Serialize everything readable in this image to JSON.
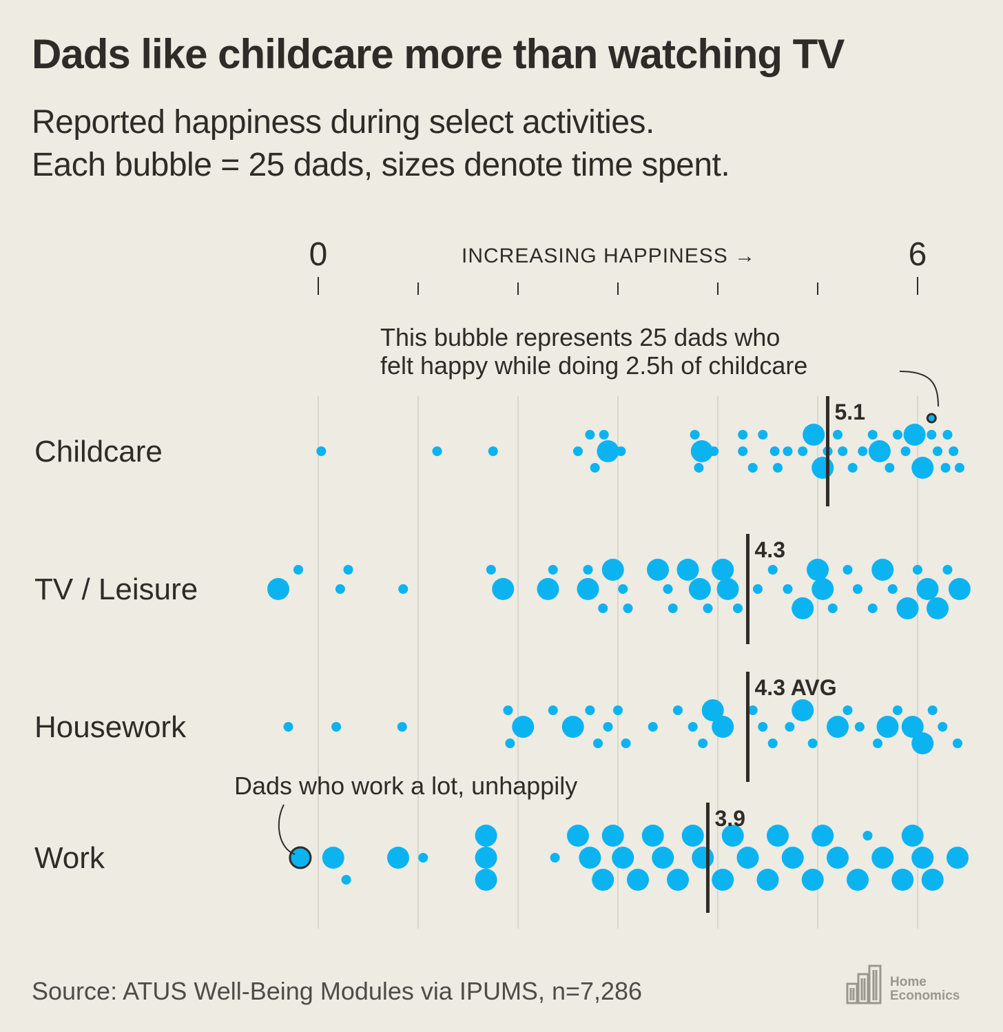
{
  "header": {
    "title": "Dads like childcare more than watching TV",
    "subtitle_line1": "Reported happiness during select activities.",
    "subtitle_line2": "Each bubble = 25 dads, sizes denote time spent."
  },
  "footer": {
    "source": "Source: ATUS Well-Being Modules via IPUMS, n=7,286",
    "logo_line1": "Home",
    "logo_line2": "Economics"
  },
  "colors": {
    "bubble": "#0cb3f1",
    "text": "#2f2b28",
    "grid": "#dad7cd",
    "background": "#edebe2"
  },
  "chart_data": {
    "type": "scatter",
    "subtype": "beeswarm",
    "x_axis_title": "INCREASING HAPPINESS →",
    "xlim": [
      0,
      6
    ],
    "x_ticks": [
      0,
      1,
      2,
      3,
      4,
      5,
      6
    ],
    "x_tick_labels": [
      "0",
      "",
      "",
      "",
      "",
      "",
      "6"
    ],
    "bubble_unit": "25 dads",
    "size_meaning": "time spent",
    "categories": [
      "Childcare",
      "TV / Leisure",
      "Housework",
      "Work"
    ],
    "series": [
      {
        "name": "Childcare",
        "avg": 5.1,
        "avg_label": "5.1",
        "bubbles": [
          {
            "x": 0.03,
            "yo": 0,
            "s": 1
          },
          {
            "x": 1.19,
            "yo": 0,
            "s": 1
          },
          {
            "x": 1.75,
            "yo": 0,
            "s": 1
          },
          {
            "x": 2.6,
            "yo": 0,
            "s": 1
          },
          {
            "x": 2.72,
            "yo": -1,
            "s": 1
          },
          {
            "x": 2.77,
            "yo": 1,
            "s": 1
          },
          {
            "x": 2.9,
            "yo": 0,
            "s": 2
          },
          {
            "x": 3.03,
            "yo": 0,
            "s": 1
          },
          {
            "x": 2.86,
            "yo": -1,
            "s": 1
          },
          {
            "x": 3.77,
            "yo": -1,
            "s": 1
          },
          {
            "x": 3.84,
            "yo": 0,
            "s": 2
          },
          {
            "x": 3.96,
            "yo": 0,
            "s": 1
          },
          {
            "x": 3.81,
            "yo": 1,
            "s": 1
          },
          {
            "x": 4.25,
            "yo": -1,
            "s": 1
          },
          {
            "x": 4.25,
            "yo": 0,
            "s": 1
          },
          {
            "x": 4.35,
            "yo": 1,
            "s": 1
          },
          {
            "x": 4.45,
            "yo": -1,
            "s": 1
          },
          {
            "x": 4.57,
            "yo": 0,
            "s": 1
          },
          {
            "x": 4.6,
            "yo": 1,
            "s": 1
          },
          {
            "x": 4.7,
            "yo": 0,
            "s": 1
          },
          {
            "x": 4.96,
            "yo": -1,
            "s": 2
          },
          {
            "x": 4.85,
            "yo": 0,
            "s": 1
          },
          {
            "x": 5.05,
            "yo": 1,
            "s": 2
          },
          {
            "x": 5.1,
            "yo": 0,
            "s": 1
          },
          {
            "x": 5.2,
            "yo": -1,
            "s": 1
          },
          {
            "x": 5.25,
            "yo": 0,
            "s": 1
          },
          {
            "x": 5.35,
            "yo": 1,
            "s": 1
          },
          {
            "x": 5.45,
            "yo": 0,
            "s": 1
          },
          {
            "x": 5.55,
            "yo": -1,
            "s": 1
          },
          {
            "x": 5.62,
            "yo": 0,
            "s": 2
          },
          {
            "x": 5.72,
            "yo": 1,
            "s": 1
          },
          {
            "x": 5.8,
            "yo": -1,
            "s": 1
          },
          {
            "x": 5.88,
            "yo": 0,
            "s": 1
          },
          {
            "x": 5.97,
            "yo": -1,
            "s": 2
          },
          {
            "x": 6.05,
            "yo": 1,
            "s": 2
          },
          {
            "x": 6.14,
            "yo": -1,
            "s": 1
          },
          {
            "x": 6.2,
            "yo": 0,
            "s": 1
          },
          {
            "x": 6.28,
            "yo": 1,
            "s": 1
          },
          {
            "x": 6.3,
            "yo": -1,
            "s": 1
          },
          {
            "x": 6.36,
            "yo": 0,
            "s": 1
          },
          {
            "x": 6.42,
            "yo": 1,
            "s": 1
          }
        ],
        "highlight": {
          "x": 6.14,
          "yo": -2,
          "s": 1
        }
      },
      {
        "name": "TV / Leisure",
        "avg": 4.3,
        "avg_label": "4.3",
        "bubbles": [
          {
            "x": -0.4,
            "yo": 0,
            "s": 2
          },
          {
            "x": -0.2,
            "yo": -1,
            "s": 1
          },
          {
            "x": 0.22,
            "yo": 0,
            "s": 1
          },
          {
            "x": 0.3,
            "yo": -1,
            "s": 1
          },
          {
            "x": 0.85,
            "yo": 0,
            "s": 1
          },
          {
            "x": 1.73,
            "yo": -1,
            "s": 1
          },
          {
            "x": 1.85,
            "yo": 0,
            "s": 2
          },
          {
            "x": 2.3,
            "yo": 0,
            "s": 2
          },
          {
            "x": 2.35,
            "yo": -1,
            "s": 1
          },
          {
            "x": 2.7,
            "yo": -1,
            "s": 1
          },
          {
            "x": 2.7,
            "yo": 0,
            "s": 2
          },
          {
            "x": 2.85,
            "yo": 1,
            "s": 1
          },
          {
            "x": 2.95,
            "yo": -1,
            "s": 2
          },
          {
            "x": 3.05,
            "yo": 0,
            "s": 1
          },
          {
            "x": 3.1,
            "yo": 1,
            "s": 1
          },
          {
            "x": 3.4,
            "yo": -1,
            "s": 2
          },
          {
            "x": 3.5,
            "yo": 0,
            "s": 1
          },
          {
            "x": 3.55,
            "yo": 1,
            "s": 1
          },
          {
            "x": 3.7,
            "yo": -1,
            "s": 2
          },
          {
            "x": 3.82,
            "yo": 0,
            "s": 2
          },
          {
            "x": 3.9,
            "yo": 1,
            "s": 1
          },
          {
            "x": 4.05,
            "yo": -1,
            "s": 2
          },
          {
            "x": 4.1,
            "yo": 0,
            "s": 2
          },
          {
            "x": 4.2,
            "yo": 1,
            "s": 1
          },
          {
            "x": 4.4,
            "yo": 0,
            "s": 1
          },
          {
            "x": 4.55,
            "yo": -1,
            "s": 1
          },
          {
            "x": 4.7,
            "yo": 0,
            "s": 1
          },
          {
            "x": 4.85,
            "yo": 1,
            "s": 2
          },
          {
            "x": 5.0,
            "yo": -1,
            "s": 2
          },
          {
            "x": 5.05,
            "yo": 0,
            "s": 2
          },
          {
            "x": 5.15,
            "yo": 1,
            "s": 1
          },
          {
            "x": 5.3,
            "yo": -1,
            "s": 1
          },
          {
            "x": 5.4,
            "yo": 0,
            "s": 1
          },
          {
            "x": 5.55,
            "yo": 1,
            "s": 1
          },
          {
            "x": 5.65,
            "yo": -1,
            "s": 2
          },
          {
            "x": 5.75,
            "yo": 0,
            "s": 1
          },
          {
            "x": 5.9,
            "yo": 1,
            "s": 2
          },
          {
            "x": 6.0,
            "yo": -1,
            "s": 1
          },
          {
            "x": 6.1,
            "yo": 0,
            "s": 2
          },
          {
            "x": 6.2,
            "yo": 1,
            "s": 2
          },
          {
            "x": 6.3,
            "yo": -1,
            "s": 1
          },
          {
            "x": 6.42,
            "yo": 0,
            "s": 2
          }
        ]
      },
      {
        "name": "Housework",
        "avg": 4.3,
        "avg_label": "4.3 AVG",
        "bubbles": [
          {
            "x": -0.3,
            "yo": 0,
            "s": 1
          },
          {
            "x": 0.18,
            "yo": 0,
            "s": 1
          },
          {
            "x": 0.84,
            "yo": 0,
            "s": 1
          },
          {
            "x": 1.9,
            "yo": -1,
            "s": 1
          },
          {
            "x": 2.05,
            "yo": 0,
            "s": 2
          },
          {
            "x": 1.92,
            "yo": 1,
            "s": 1
          },
          {
            "x": 2.35,
            "yo": -1,
            "s": 1
          },
          {
            "x": 2.55,
            "yo": 0,
            "s": 2
          },
          {
            "x": 2.72,
            "yo": -1,
            "s": 1
          },
          {
            "x": 2.8,
            "yo": 1,
            "s": 1
          },
          {
            "x": 2.9,
            "yo": 0,
            "s": 1
          },
          {
            "x": 3.0,
            "yo": -1,
            "s": 1
          },
          {
            "x": 3.08,
            "yo": 1,
            "s": 1
          },
          {
            "x": 3.35,
            "yo": 0,
            "s": 1
          },
          {
            "x": 3.6,
            "yo": -1,
            "s": 1
          },
          {
            "x": 3.75,
            "yo": 0,
            "s": 1
          },
          {
            "x": 3.85,
            "yo": 1,
            "s": 1
          },
          {
            "x": 3.95,
            "yo": -1,
            "s": 2
          },
          {
            "x": 4.05,
            "yo": 0,
            "s": 2
          },
          {
            "x": 4.35,
            "yo": -1,
            "s": 1
          },
          {
            "x": 4.45,
            "yo": 0,
            "s": 1
          },
          {
            "x": 4.55,
            "yo": 1,
            "s": 1
          },
          {
            "x": 4.72,
            "yo": 0,
            "s": 1
          },
          {
            "x": 4.85,
            "yo": -1,
            "s": 2
          },
          {
            "x": 4.95,
            "yo": 1,
            "s": 1
          },
          {
            "x": 5.2,
            "yo": 0,
            "s": 2
          },
          {
            "x": 5.3,
            "yo": -1,
            "s": 1
          },
          {
            "x": 5.42,
            "yo": 0,
            "s": 1
          },
          {
            "x": 5.6,
            "yo": 1,
            "s": 1
          },
          {
            "x": 5.7,
            "yo": 0,
            "s": 2
          },
          {
            "x": 5.8,
            "yo": -1,
            "s": 1
          },
          {
            "x": 5.95,
            "yo": 0,
            "s": 2
          },
          {
            "x": 6.05,
            "yo": 1,
            "s": 2
          },
          {
            "x": 6.15,
            "yo": -1,
            "s": 1
          },
          {
            "x": 6.25,
            "yo": 0,
            "s": 1
          },
          {
            "x": 6.4,
            "yo": 1,
            "s": 1
          }
        ]
      },
      {
        "name": "Work",
        "avg": 3.9,
        "avg_label": "3.9",
        "bubbles": [
          {
            "x": 0.15,
            "yo": 0,
            "s": 2
          },
          {
            "x": 0.28,
            "yo": 1,
            "s": 1
          },
          {
            "x": 0.8,
            "yo": 0,
            "s": 2
          },
          {
            "x": 1.05,
            "yo": 0,
            "s": 1
          },
          {
            "x": 1.68,
            "yo": -1,
            "s": 2
          },
          {
            "x": 1.68,
            "yo": 0,
            "s": 2
          },
          {
            "x": 1.68,
            "yo": 1,
            "s": 2
          },
          {
            "x": 2.37,
            "yo": 0,
            "s": 1
          },
          {
            "x": 2.6,
            "yo": -1,
            "s": 2
          },
          {
            "x": 2.72,
            "yo": 0,
            "s": 2
          },
          {
            "x": 2.85,
            "yo": 1,
            "s": 2
          },
          {
            "x": 2.95,
            "yo": -1,
            "s": 2
          },
          {
            "x": 3.05,
            "yo": 0,
            "s": 2
          },
          {
            "x": 3.2,
            "yo": 1,
            "s": 2
          },
          {
            "x": 3.35,
            "yo": -1,
            "s": 2
          },
          {
            "x": 3.45,
            "yo": 0,
            "s": 2
          },
          {
            "x": 3.6,
            "yo": 1,
            "s": 2
          },
          {
            "x": 3.75,
            "yo": -1,
            "s": 2
          },
          {
            "x": 3.85,
            "yo": 0,
            "s": 2
          },
          {
            "x": 4.05,
            "yo": 1,
            "s": 2
          },
          {
            "x": 4.15,
            "yo": -1,
            "s": 2
          },
          {
            "x": 4.3,
            "yo": 0,
            "s": 2
          },
          {
            "x": 4.5,
            "yo": 1,
            "s": 2
          },
          {
            "x": 4.6,
            "yo": -1,
            "s": 2
          },
          {
            "x": 4.75,
            "yo": 0,
            "s": 2
          },
          {
            "x": 4.95,
            "yo": 1,
            "s": 2
          },
          {
            "x": 5.05,
            "yo": -1,
            "s": 2
          },
          {
            "x": 5.2,
            "yo": 0,
            "s": 2
          },
          {
            "x": 5.4,
            "yo": 1,
            "s": 2
          },
          {
            "x": 5.5,
            "yo": -1,
            "s": 1
          },
          {
            "x": 5.65,
            "yo": 0,
            "s": 2
          },
          {
            "x": 5.85,
            "yo": 1,
            "s": 2
          },
          {
            "x": 5.95,
            "yo": -1,
            "s": 2
          },
          {
            "x": 6.05,
            "yo": 0,
            "s": 2
          },
          {
            "x": 6.15,
            "yo": 1,
            "s": 2
          },
          {
            "x": 6.4,
            "yo": 0,
            "s": 2
          }
        ],
        "highlight": {
          "x": -0.18,
          "yo": 0,
          "s": 2
        }
      }
    ],
    "annotations": {
      "childcare_line1": "This bubble represents 25 dads who",
      "childcare_line2": "felt happy while doing 2.5h of childcare",
      "work": "Dads who work a lot, unhappily"
    }
  }
}
